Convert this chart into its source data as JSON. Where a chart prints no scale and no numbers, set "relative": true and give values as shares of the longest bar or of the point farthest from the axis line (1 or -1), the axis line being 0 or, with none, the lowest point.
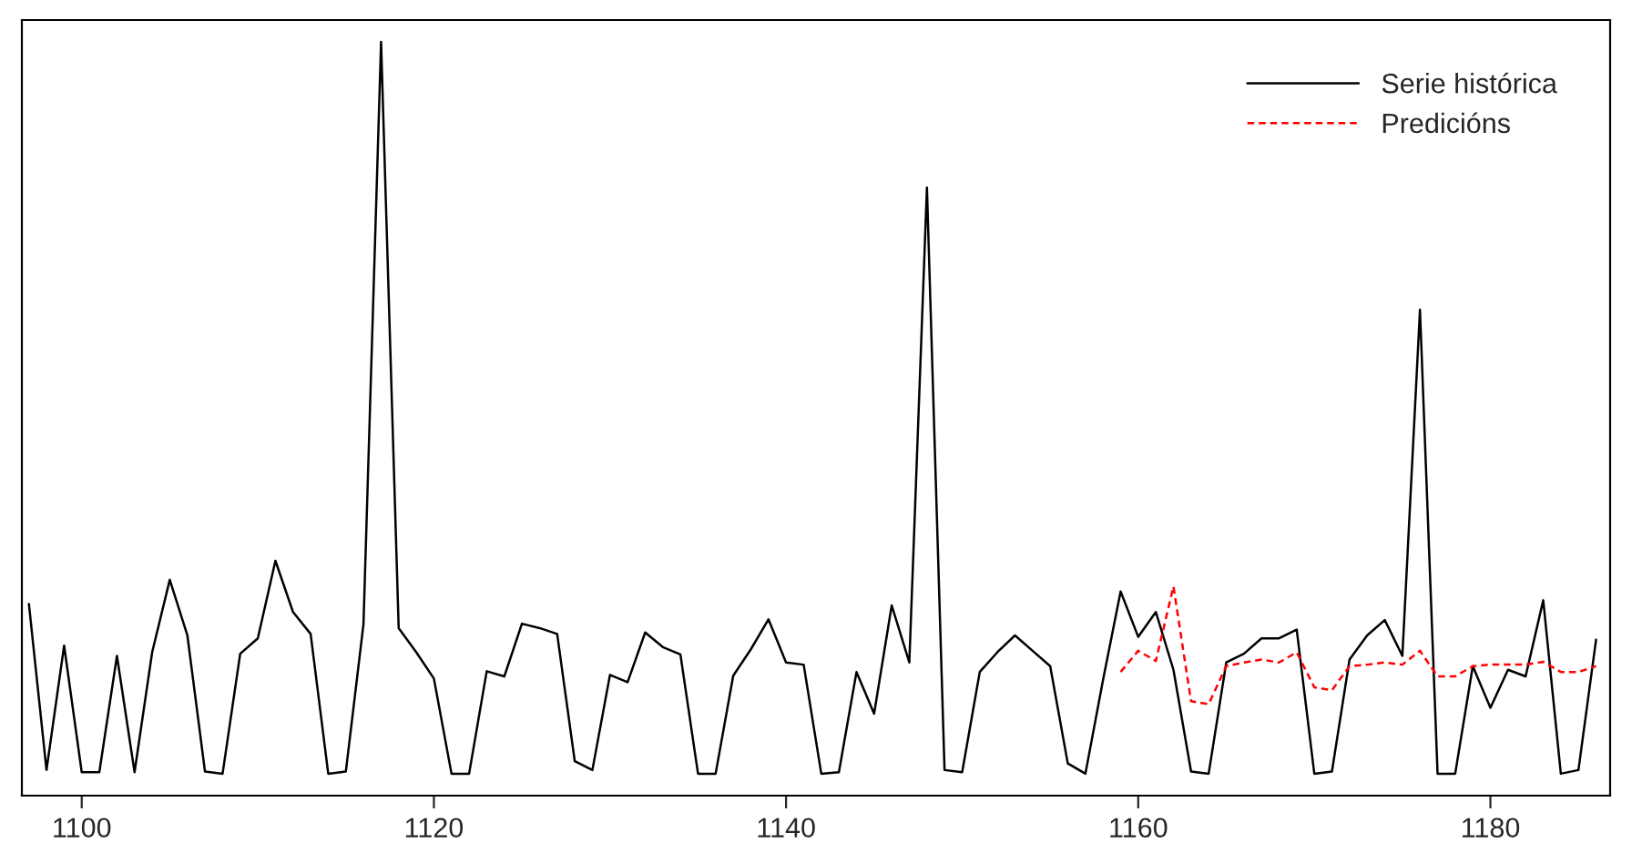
{
  "chart_data": {
    "type": "line",
    "relative": true,
    "legend": "top right",
    "grid": false,
    "tick_labels": "x",
    "xlim": [
      1096.6,
      1186.8
    ],
    "xticks": [
      1100,
      1120,
      1140,
      1160,
      1180
    ],
    "series": [
      {
        "name": "Serie histórica",
        "color": "#000000",
        "line_style": "solid",
        "x": [
          1097,
          1098,
          1099,
          1100,
          1101,
          1102,
          1103,
          1104,
          1105,
          1106,
          1107,
          1108,
          1109,
          1110,
          1111,
          1112,
          1113,
          1114,
          1115,
          1116,
          1117,
          1118,
          1119,
          1120,
          1121,
          1122,
          1123,
          1124,
          1125,
          1126,
          1127,
          1128,
          1129,
          1130,
          1131,
          1132,
          1133,
          1134,
          1135,
          1136,
          1137,
          1138,
          1139,
          1140,
          1141,
          1142,
          1143,
          1144,
          1145,
          1146,
          1147,
          1148,
          1149,
          1150,
          1151,
          1152,
          1153,
          1154,
          1155,
          1156,
          1157,
          1158,
          1159,
          1160,
          1161,
          1162,
          1163,
          1164,
          1165,
          1166,
          1167,
          1168,
          1169,
          1170,
          1171,
          1172,
          1173,
          1174,
          1175,
          1176,
          1177,
          1178,
          1179,
          1180,
          1181,
          1182,
          1183,
          1184,
          1185,
          1186
        ],
        "values": [
          0.232,
          0.005,
          0.175,
          0.002,
          0.002,
          0.161,
          0.002,
          0.166,
          0.265,
          0.189,
          0.003,
          0,
          0.164,
          0.185,
          0.291,
          0.221,
          0.191,
          0,
          0.003,
          0.204,
          1,
          0.199,
          0.166,
          0.13,
          0,
          0,
          0.14,
          0.133,
          0.205,
          0.199,
          0.191,
          0.017,
          0.005,
          0.135,
          0.125,
          0.193,
          0.173,
          0.163,
          0,
          0,
          0.134,
          0.17,
          0.211,
          0.152,
          0.149,
          0,
          0.002,
          0.139,
          0.082,
          0.23,
          0.152,
          0.801,
          0.005,
          0.002,
          0.139,
          0.166,
          0.189,
          0.168,
          0.147,
          0.014,
          0,
          0.128,
          0.249,
          0.187,
          0.221,
          0.142,
          0.003,
          0,
          0.152,
          0.164,
          0.185,
          0.185,
          0.197,
          0,
          0.003,
          0.156,
          0.189,
          0.21,
          0.161,
          0.634,
          0,
          0,
          0.147,
          0.09,
          0.142,
          0.133,
          0.237,
          0,
          0.005,
          0.183
        ]
      },
      {
        "name": "Predicións",
        "color": "#ff0000",
        "line_style": "dashed",
        "x": [
          1159,
          1160,
          1161,
          1162,
          1163,
          1164,
          1165,
          1166,
          1167,
          1168,
          1169,
          1170,
          1171,
          1172,
          1173,
          1174,
          1175,
          1176,
          1177,
          1178,
          1179,
          1180,
          1181,
          1182,
          1183,
          1184,
          1185,
          1186
        ],
        "values": [
          0.139,
          0.168,
          0.154,
          0.256,
          0.099,
          0.095,
          0.147,
          0.152,
          0.156,
          0.152,
          0.166,
          0.118,
          0.114,
          0.147,
          0.149,
          0.152,
          0.149,
          0.168,
          0.133,
          0.133,
          0.147,
          0.149,
          0.149,
          0.149,
          0.153,
          0.139,
          0.139,
          0.147
        ]
      }
    ]
  }
}
